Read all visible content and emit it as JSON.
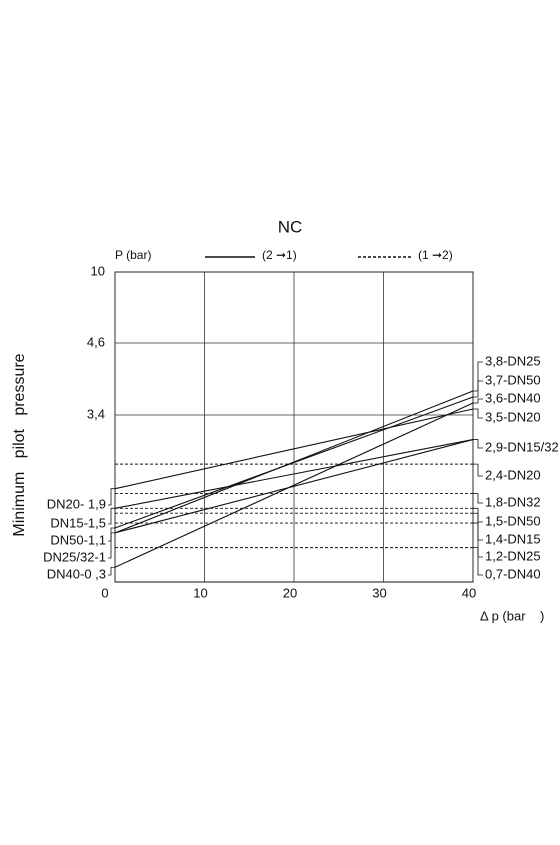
{
  "chart_data": {
    "type": "line",
    "title": "NC",
    "y_unit_label": "P (bar)",
    "x_label": "Δ p (bar    )",
    "y_label": "Minimum   pilot   pressure",
    "legend": [
      {
        "label": "(2 ➞1)",
        "style": "solid"
      },
      {
        "label": "(1 ➞2)",
        "style": "dashed"
      }
    ],
    "x": [
      0,
      40
    ],
    "xlim": [
      0,
      40
    ],
    "xticks": [
      0,
      10,
      20,
      30,
      40
    ],
    "ylim": [
      0,
      10
    ],
    "yticks": [
      {
        "value": 3.4,
        "label": "3,4"
      },
      {
        "value": 4.6,
        "label": "4,6"
      },
      10
    ],
    "grid": true,
    "color": "#111111",
    "series": [
      {
        "style": "solid",
        "values": [
          1.9,
          3.5
        ]
      },
      {
        "style": "solid",
        "values": [
          1.5,
          2.9
        ]
      },
      {
        "style": "solid",
        "values": [
          1.1,
          3.7
        ]
      },
      {
        "style": "solid",
        "values": [
          1,
          3.8
        ]
      },
      {
        "style": "solid",
        "values": [
          1,
          2.9
        ]
      },
      {
        "style": "solid",
        "values": [
          0.3,
          3.6
        ]
      },
      {
        "style": "dashed",
        "values": [
          2.4,
          2.4
        ]
      },
      {
        "style": "dashed",
        "values": [
          1.8,
          1.8
        ]
      },
      {
        "style": "dashed",
        "values": [
          1.5,
          1.5
        ]
      },
      {
        "style": "dashed",
        "values": [
          1.4,
          1.4
        ]
      },
      {
        "style": "dashed",
        "values": [
          1.2,
          1.2
        ]
      },
      {
        "style": "dashed",
        "values": [
          0.7,
          0.7
        ]
      }
    ],
    "left_labels": [
      {
        "text": "DN20- 1,9",
        "value": 1.9
      },
      {
        "text": "DN15-1,5",
        "value": 1.5
      },
      {
        "text": "DN50-1,1",
        "value": 1.1
      },
      {
        "text": "DN25/32-1",
        "value": 1
      },
      {
        "text": "DN40-0 ,3",
        "value": 0.3
      }
    ],
    "right_labels": [
      {
        "text": "3,8-DN25",
        "value": 3.8
      },
      {
        "text": "3,7-DN50",
        "value": 3.7
      },
      {
        "text": "3,6-DN40",
        "value": 3.6
      },
      {
        "text": "3,5-DN20",
        "value": 3.5
      },
      {
        "text": "2,9-DN15/32",
        "value": 2.9
      },
      {
        "text": "2,4-DN20",
        "value": 2.4
      },
      {
        "text": "1,8-DN32",
        "value": 1.8
      },
      {
        "text": "1,5-DN50",
        "value": 1.5
      },
      {
        "text": "1,4-DN15",
        "value": 1.4
      },
      {
        "text": "1,2-DN25",
        "value": 1.2
      },
      {
        "text": "0,7-DN40",
        "value": 0.7
      }
    ]
  }
}
